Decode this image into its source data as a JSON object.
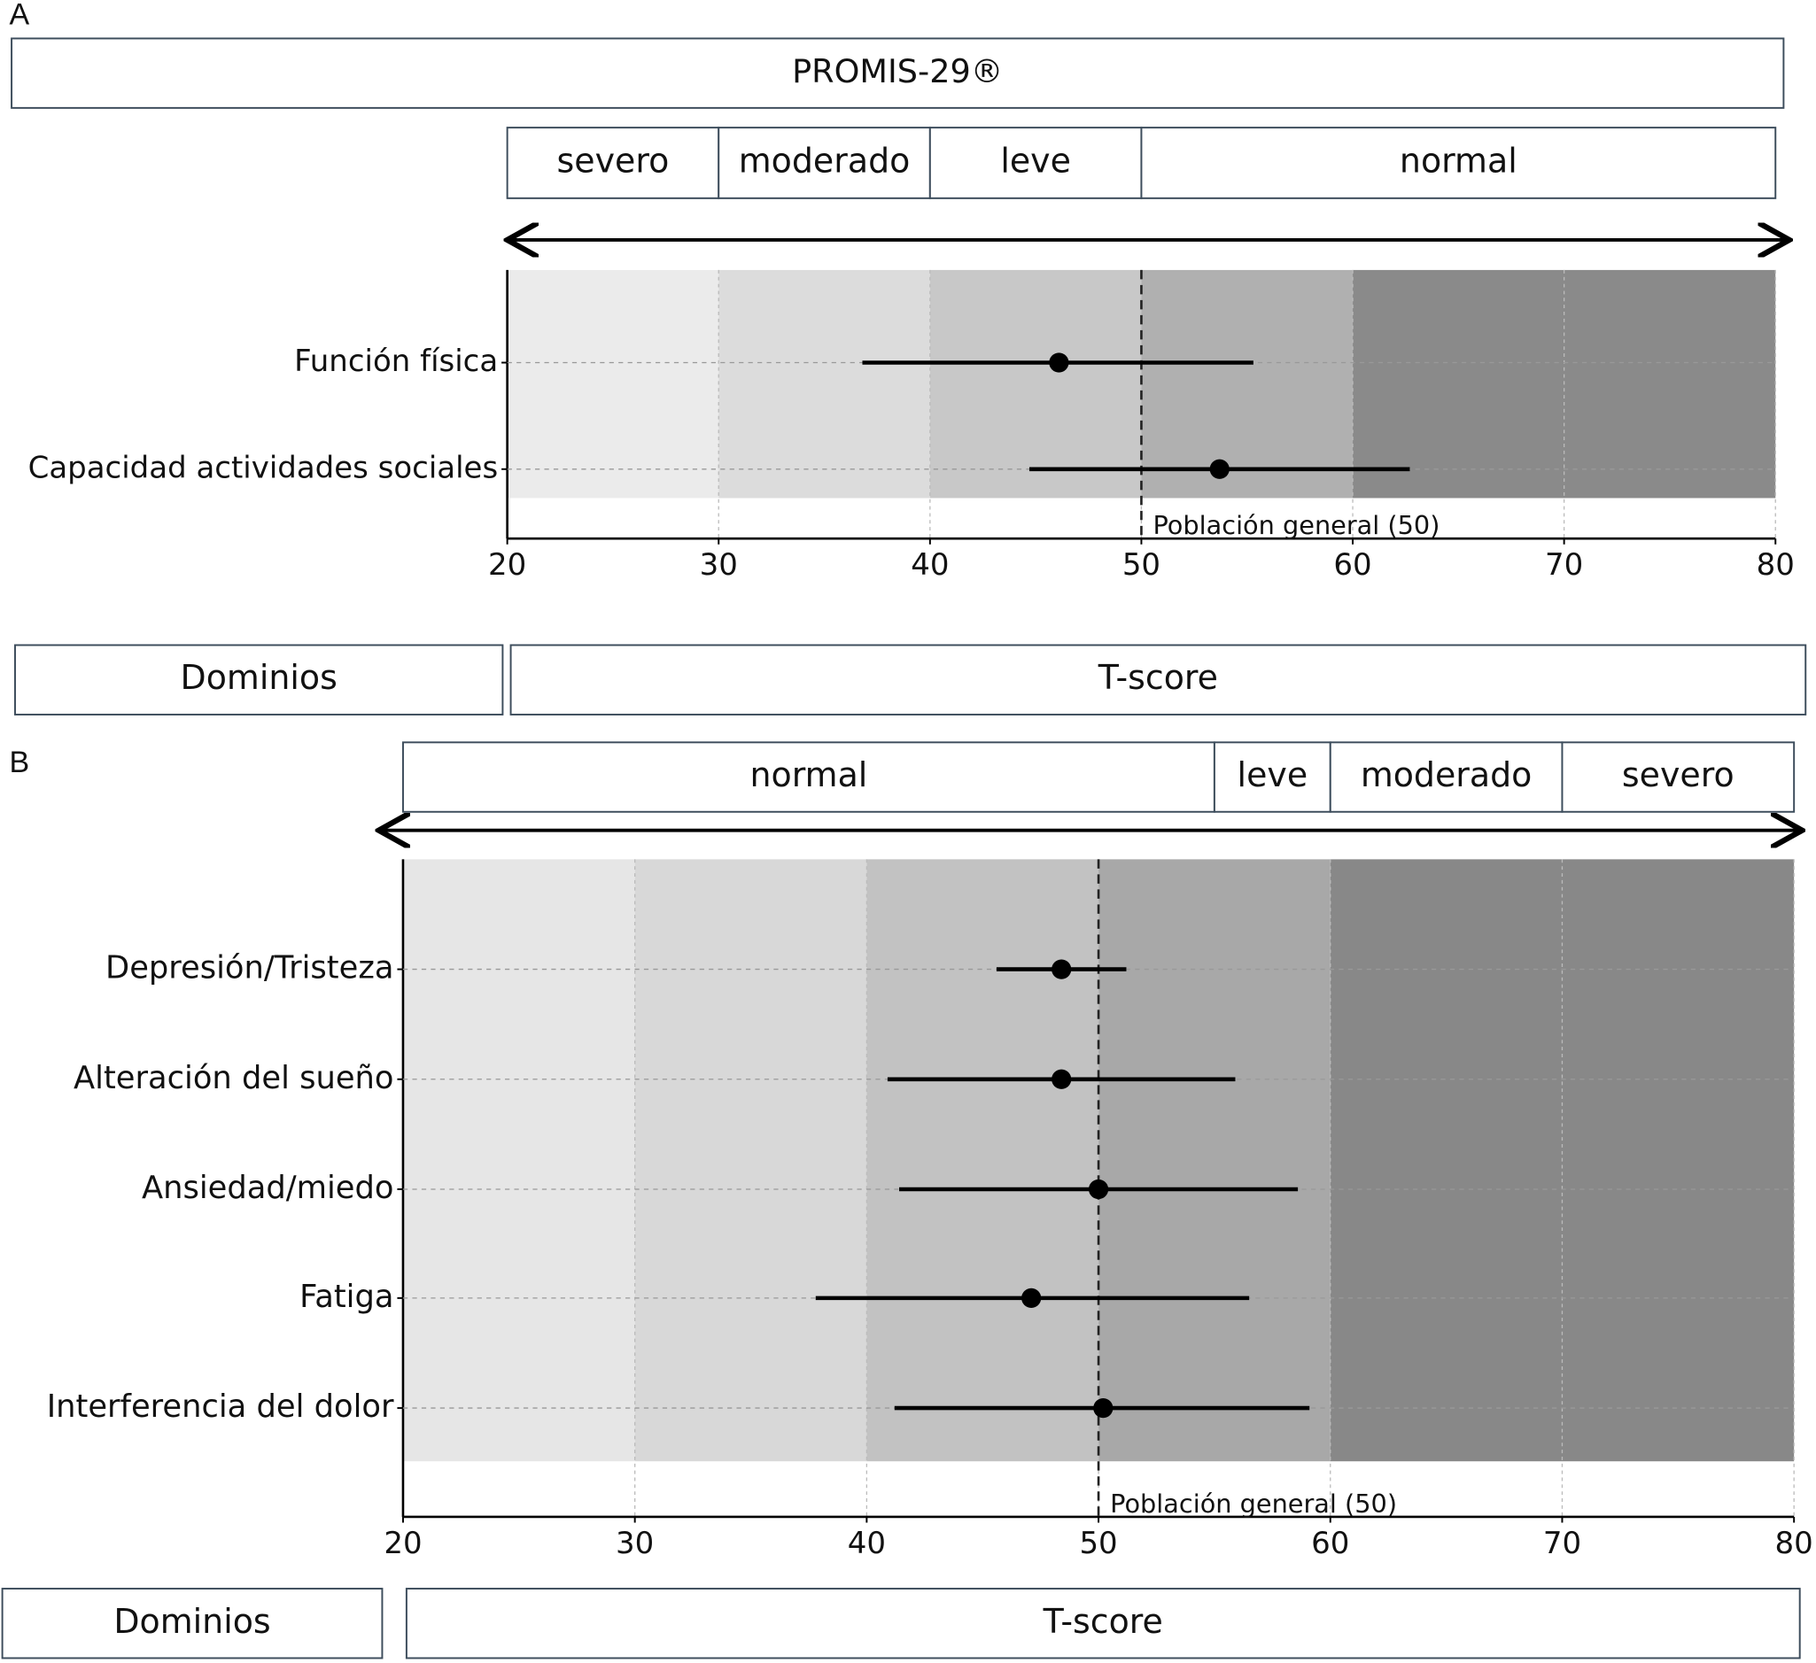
{
  "chart_data": [
    {
      "type": "forest",
      "panel_label": "A",
      "title": "PROMIS-29®",
      "categories": [
        "Función física",
        "Capacidad actividades sociales"
      ],
      "values": [
        46.1,
        53.7
      ],
      "lower": [
        36.8,
        44.7
      ],
      "upper": [
        55.3,
        62.7
      ],
      "xlim": [
        20,
        80
      ],
      "xticks": [
        20,
        30,
        40,
        50,
        60,
        70,
        80
      ],
      "grid": true,
      "bands": [
        {
          "from": 20,
          "to": 30,
          "color": "#ebebeb"
        },
        {
          "from": 30,
          "to": 40,
          "color": "#dcdcdc"
        },
        {
          "from": 40,
          "to": 50,
          "color": "#c8c8c8"
        },
        {
          "from": 50,
          "to": 60,
          "color": "#b0b0b0"
        },
        {
          "from": 60,
          "to": 80,
          "color": "#8a8a8a"
        }
      ],
      "severity": [
        {
          "label": "severo",
          "from": 20,
          "to": 30
        },
        {
          "label": "moderado",
          "from": 30,
          "to": 40
        },
        {
          "label": "leve",
          "from": 40,
          "to": 50
        },
        {
          "label": "normal",
          "from": 50,
          "to": 80
        }
      ],
      "reference": {
        "value": 50,
        "label": "Población general (50)"
      },
      "y_header": "Dominios",
      "x_label": "T-score",
      "color": "#000000"
    },
    {
      "type": "forest",
      "panel_label": "B",
      "categories": [
        "Depresión/Tristeza",
        "Alteración del sueño",
        "Ansiedad/miedo",
        "Fatiga",
        "Interferencia del dolor"
      ],
      "values": [
        48.4,
        48.4,
        50.0,
        47.1,
        50.2
      ],
      "lower": [
        45.6,
        40.9,
        41.4,
        37.8,
        41.2
      ],
      "upper": [
        51.2,
        55.9,
        58.6,
        56.5,
        59.1
      ],
      "xlim": [
        20,
        80
      ],
      "xticks": [
        20,
        30,
        40,
        50,
        60,
        70,
        80
      ],
      "grid": true,
      "bands": [
        {
          "from": 20,
          "to": 30,
          "color": "#e6e6e6"
        },
        {
          "from": 30,
          "to": 40,
          "color": "#d8d8d8"
        },
        {
          "from": 40,
          "to": 50,
          "color": "#c2c2c2"
        },
        {
          "from": 50,
          "to": 60,
          "color": "#a8a8a8"
        },
        {
          "from": 60,
          "to": 80,
          "color": "#888888"
        }
      ],
      "severity": [
        {
          "label": "normal",
          "from": 20,
          "to": 55
        },
        {
          "label": "leve",
          "from": 55,
          "to": 60
        },
        {
          "label": "moderado",
          "from": 60,
          "to": 70
        },
        {
          "label": "severo",
          "from": 70,
          "to": 80
        }
      ],
      "reference": {
        "value": 50,
        "label": "Población general (50)"
      },
      "y_header": "Dominios",
      "x_label": "T-score",
      "color": "#000000"
    }
  ]
}
